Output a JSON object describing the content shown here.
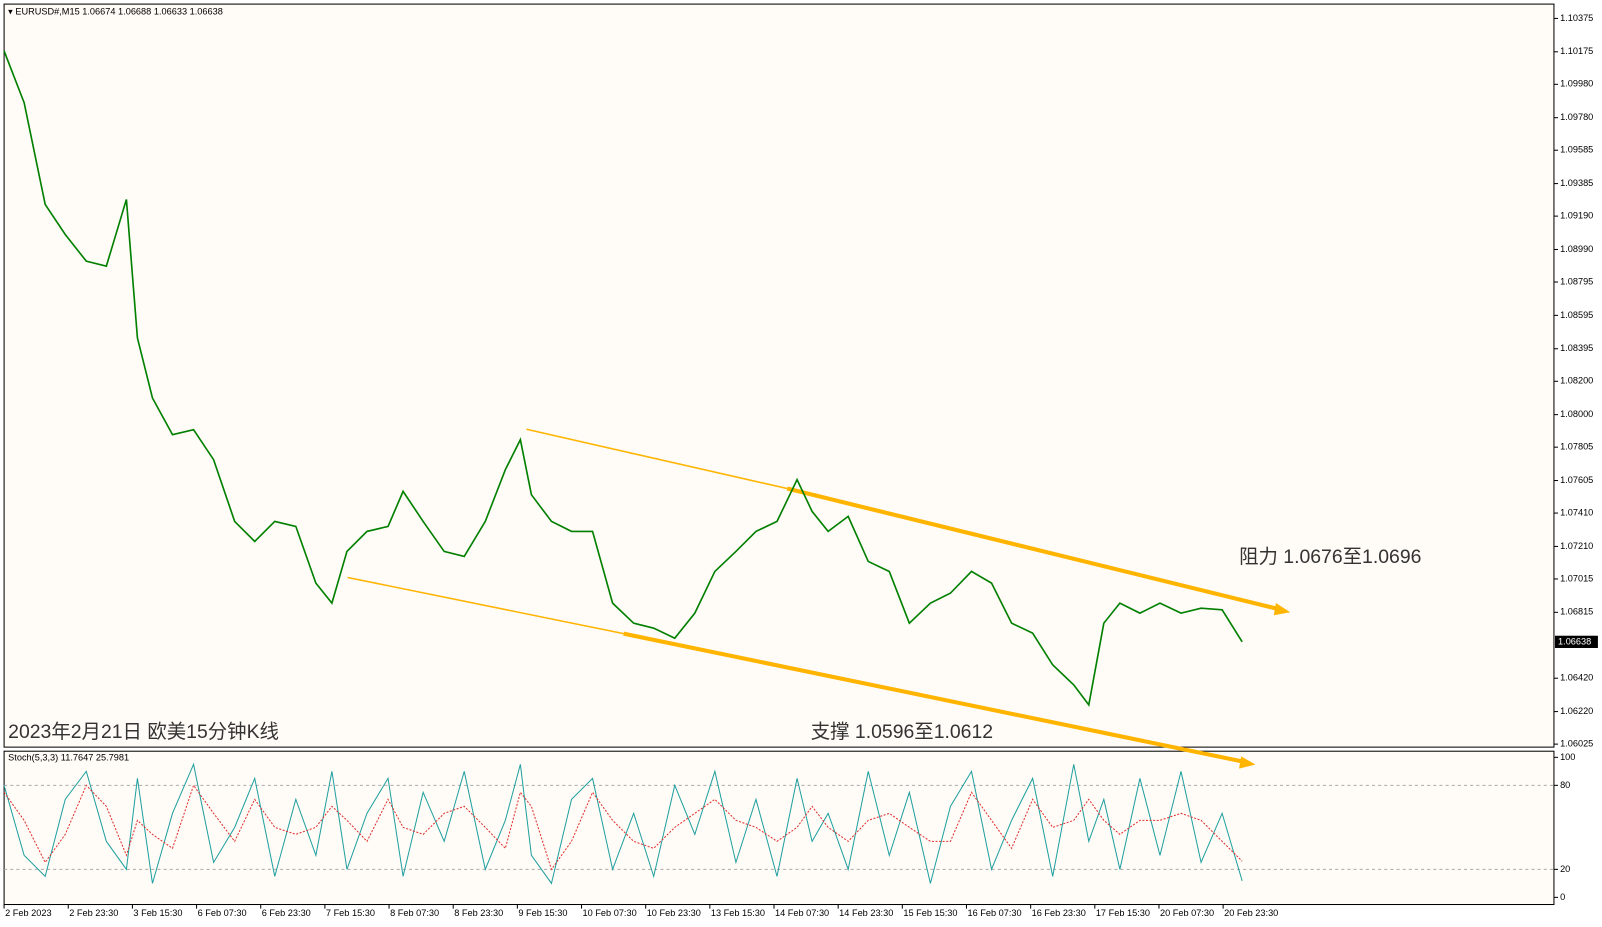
{
  "chart_data": [
    {
      "type": "line",
      "header": {
        "symbol": "EURUSD#,M15",
        "ohlc": [
          1.06674,
          1.06688,
          1.06633,
          1.06638
        ]
      },
      "annotations": [
        "阻力 1.0676至1.0696",
        "支撑 1.0596至1.0612",
        "2023年2月21日 欧美15分钟K线"
      ],
      "x": [
        0,
        20,
        41,
        61,
        82,
        102,
        122,
        133,
        148,
        168,
        189,
        209,
        230,
        250,
        270,
        291,
        311,
        327,
        342,
        362,
        383,
        398,
        418,
        439,
        459,
        480,
        500,
        515,
        526,
        546,
        566,
        587,
        607,
        628,
        648,
        669,
        689,
        709,
        730,
        750,
        771,
        791,
        806,
        822,
        842,
        862,
        883,
        903,
        924,
        944,
        965,
        985,
        1005,
        1026,
        1046,
        1067,
        1082,
        1097,
        1113,
        1133,
        1153,
        1174,
        1194,
        1215,
        1235
      ],
      "series": [
        {
          "color": "#008000",
          "values": [
            1.1018,
            1.0987,
            1.0926,
            1.0908,
            1.0892,
            1.0889,
            1.0929,
            1.0846,
            1.081,
            1.0788,
            1.0791,
            1.0773,
            1.0736,
            1.0724,
            1.0736,
            1.0733,
            1.0699,
            1.0687,
            1.0718,
            1.073,
            1.0733,
            1.0754,
            1.0736,
            1.0718,
            1.0715,
            1.0736,
            1.0767,
            1.0785,
            1.0752,
            1.0736,
            1.073,
            1.073,
            1.0687,
            1.0675,
            1.0672,
            1.0666,
            1.0681,
            1.0706,
            1.0718,
            1.073,
            1.0736,
            1.0761,
            1.0742,
            1.073,
            1.0739,
            1.0712,
            1.0706,
            1.0675,
            1.0687,
            1.0693,
            1.0706,
            1.0699,
            1.0675,
            1.0669,
            1.065,
            1.0638,
            1.0626,
            1.0675,
            1.0687,
            1.0681,
            1.0687,
            1.0681,
            1.0684,
            1.0683,
            1.06638
          ]
        }
      ],
      "current_price": 1.06638,
      "xlim": [
        0,
        1546
      ],
      "xticks": [
        {
          "value": 0,
          "label": "2 Feb 2023"
        },
        {
          "value": 64,
          "label": "2 Feb 23:30"
        },
        {
          "value": 128,
          "label": "3 Feb 15:30"
        },
        {
          "value": 192,
          "label": "6 Feb 07:30"
        },
        {
          "value": 256,
          "label": "6 Feb 23:30"
        },
        {
          "value": 320,
          "label": "7 Feb 15:30"
        },
        {
          "value": 384,
          "label": "8 Feb 07:30"
        },
        {
          "value": 448,
          "label": "8 Feb 23:30"
        },
        {
          "value": 512,
          "label": "9 Feb 15:30"
        },
        {
          "value": 576,
          "label": "10 Feb 07:30"
        },
        {
          "value": 640,
          "label": "10 Feb 23:30"
        },
        {
          "value": 704,
          "label": "13 Feb 15:30"
        },
        {
          "value": 768,
          "label": "14 Feb 07:30"
        },
        {
          "value": 832,
          "label": "14 Feb 23:30"
        },
        {
          "value": 896,
          "label": "15 Feb 15:30"
        },
        {
          "value": 960,
          "label": "16 Feb 07:30"
        },
        {
          "value": 1024,
          "label": "16 Feb 23:30"
        },
        {
          "value": 1088,
          "label": "17 Feb 15:30"
        },
        {
          "value": 1152,
          "label": "20 Feb 07:30"
        },
        {
          "value": 1216,
          "label": "20 Feb 23:30"
        }
      ],
      "ylim": [
        1.06007,
        1.10461
      ],
      "yticks": [
        1.10375,
        1.10175,
        {
          "value": 1.0998,
          "label": "1.09980"
        },
        {
          "value": 1.0978,
          "label": "1.09780"
        },
        1.09585,
        1.09385,
        {
          "value": 1.0919,
          "label": "1.09190"
        },
        {
          "value": 1.0899,
          "label": "1.08990"
        },
        1.08795,
        1.08595,
        1.08395,
        {
          "value": 1.082,
          "label": "1.08200"
        },
        {
          "value": 1.08,
          "label": "1.08000"
        },
        1.07805,
        1.07605,
        {
          "value": 1.0741,
          "label": "1.07410"
        },
        {
          "value": 1.0721,
          "label": "1.07210"
        },
        1.07015,
        1.06815,
        {
          "value": 1.0642,
          "label": "1.06420"
        },
        {
          "value": 1.0622,
          "label": "1.06220"
        },
        1.06025
      ]
    },
    {
      "type": "line",
      "title": "Stoch(5,3,3)",
      "readouts": [
        11.7647,
        25.7981
      ],
      "x": [
        0,
        20,
        41,
        61,
        82,
        102,
        122,
        133,
        148,
        168,
        189,
        209,
        230,
        250,
        270,
        291,
        311,
        327,
        342,
        362,
        383,
        398,
        418,
        439,
        459,
        480,
        500,
        515,
        526,
        546,
        566,
        587,
        607,
        628,
        648,
        669,
        689,
        709,
        730,
        750,
        771,
        791,
        806,
        822,
        842,
        862,
        883,
        903,
        924,
        944,
        965,
        985,
        1005,
        1026,
        1046,
        1067,
        1082,
        1097,
        1113,
        1133,
        1153,
        1174,
        1194,
        1215,
        1235
      ],
      "series": [
        {
          "color": "#20a0a0",
          "values": [
            80,
            30,
            15,
            70,
            90,
            40,
            20,
            85,
            10,
            60,
            95,
            25,
            50,
            85,
            15,
            70,
            30,
            90,
            20,
            60,
            85,
            15,
            75,
            40,
            90,
            20,
            55,
            95,
            30,
            10,
            70,
            85,
            20,
            60,
            15,
            80,
            45,
            90,
            25,
            70,
            15,
            85,
            40,
            60,
            20,
            90,
            30,
            75,
            10,
            65,
            90,
            20,
            55,
            85,
            15,
            95,
            40,
            70,
            20,
            85,
            30,
            90,
            25,
            60,
            11.7647
          ]
        },
        {
          "color": "#e03030",
          "values": [
            75,
            55,
            25,
            45,
            80,
            65,
            30,
            55,
            45,
            35,
            80,
            60,
            40,
            70,
            50,
            45,
            50,
            65,
            55,
            40,
            70,
            50,
            45,
            60,
            65,
            50,
            35,
            75,
            65,
            20,
            40,
            75,
            55,
            40,
            35,
            50,
            60,
            70,
            55,
            50,
            40,
            50,
            65,
            50,
            40,
            55,
            60,
            50,
            40,
            40,
            75,
            55,
            35,
            70,
            50,
            55,
            70,
            55,
            45,
            55,
            55,
            60,
            55,
            40,
            25.7981
          ]
        }
      ],
      "xlim": [
        0,
        1546
      ],
      "ylim": [
        0,
        100
      ],
      "yticks": [
        100,
        80,
        20,
        0
      ],
      "grid_levels": [
        80,
        20
      ]
    }
  ]
}
